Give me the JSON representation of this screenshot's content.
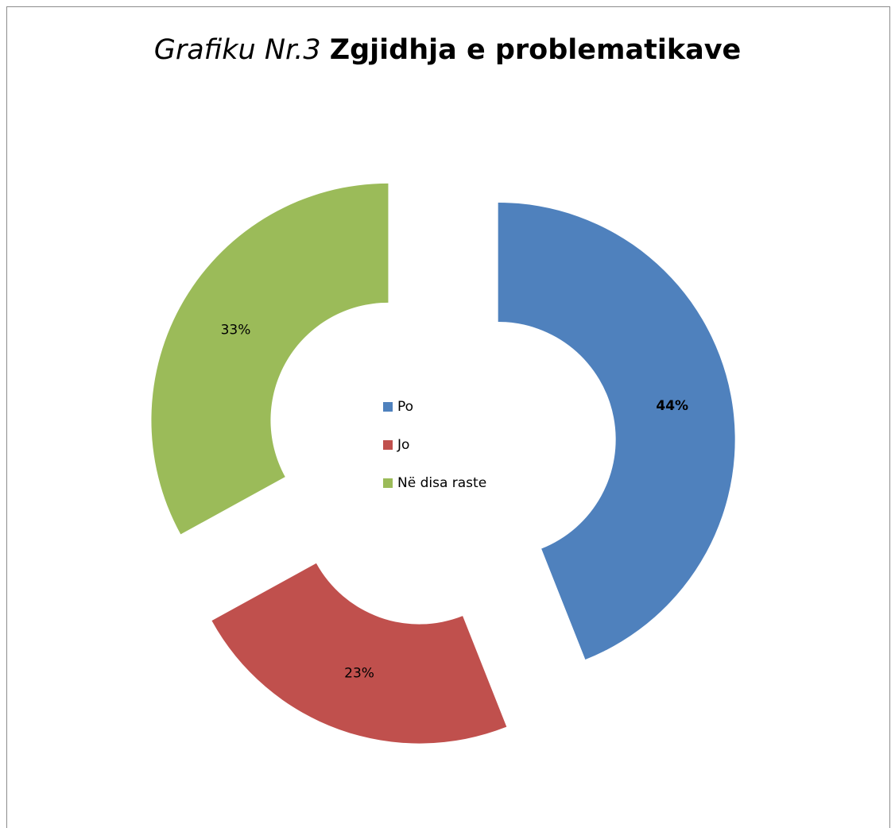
{
  "chart_data": {
    "type": "donut",
    "title": [
      "Grafiku Nr.3",
      "Zgjidhja e problematikave"
    ],
    "categories": [
      "Po",
      "Jo",
      "Në disa raste"
    ],
    "values": [
      44,
      23,
      33
    ],
    "value_labels": [
      "44%",
      "23%",
      "33%"
    ],
    "colors": [
      "#4f81bd",
      "#c0504d",
      "#9bbb59"
    ],
    "legend": "center"
  }
}
